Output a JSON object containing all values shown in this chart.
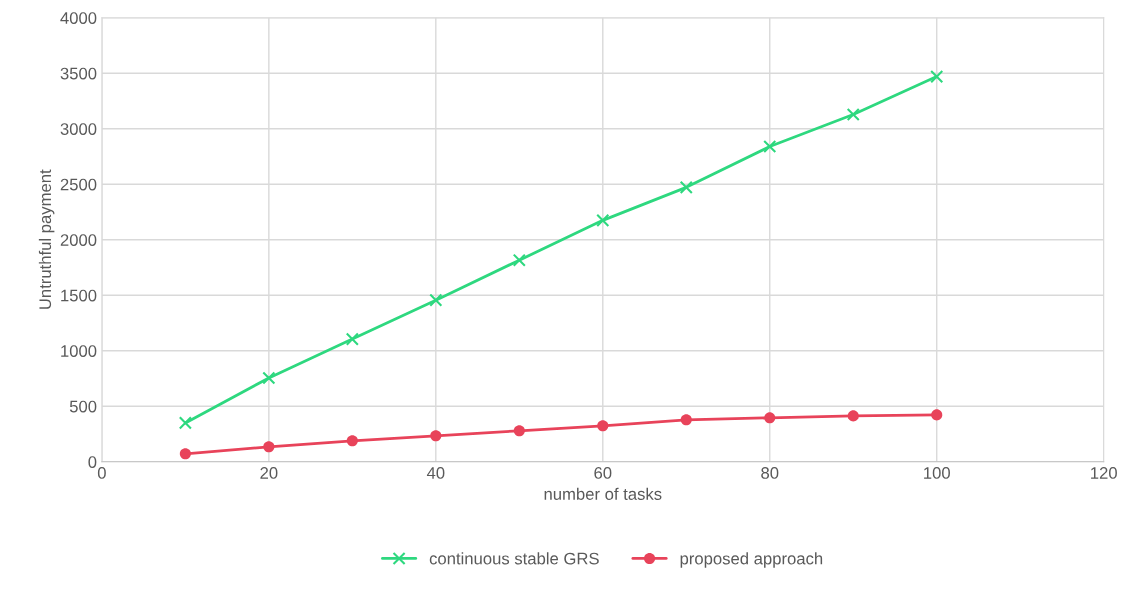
{
  "chart_data": {
    "type": "line",
    "xlabel": "number of tasks",
    "ylabel": "Untruthful payment",
    "x": [
      10,
      20,
      30,
      40,
      50,
      60,
      70,
      80,
      90,
      100
    ],
    "series": [
      {
        "name": "continuous stable GRS",
        "color": "#2ed87f",
        "marker": "cross",
        "values": [
          350,
          755,
          1105,
          1456,
          1816,
          2175,
          2472,
          2840,
          3128,
          3470
        ]
      },
      {
        "name": "proposed approach",
        "color": "#e8435a",
        "marker": "circle",
        "values": [
          72,
          135,
          189,
          234,
          279,
          324,
          378,
          396,
          413,
          422
        ]
      }
    ],
    "xlim": [
      0,
      120
    ],
    "xticks": [
      0,
      20,
      40,
      60,
      80,
      100,
      120
    ],
    "ylim": [
      0,
      4000
    ],
    "yticks": [
      0,
      500,
      1000,
      1500,
      2000,
      2500,
      3000,
      3500,
      4000
    ],
    "grid": true,
    "legend": "bottom",
    "line_style": "solid"
  }
}
